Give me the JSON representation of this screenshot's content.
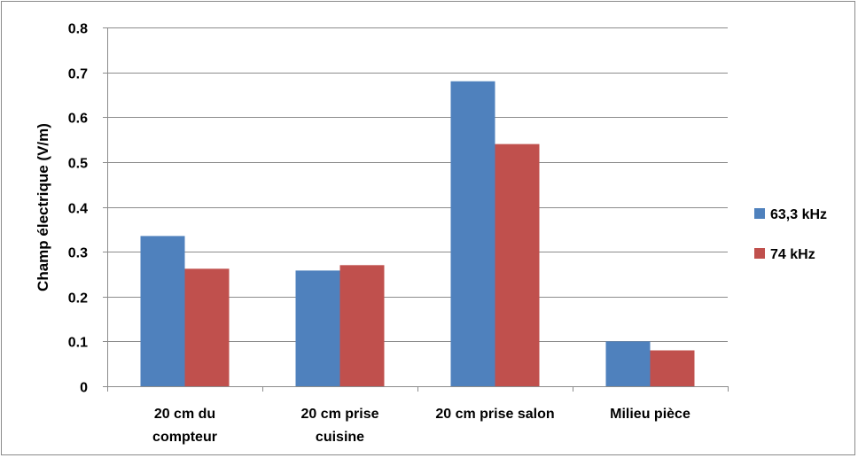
{
  "chart_data": {
    "type": "bar",
    "title": "",
    "xlabel": "",
    "ylabel": "Champ électrique (V/m)",
    "ylim": [
      0,
      0.8
    ],
    "yticks": [
      "0",
      "0.1",
      "0.2",
      "0.3",
      "0.4",
      "0.5",
      "0.6",
      "0.7",
      "0.8"
    ],
    "grid": true,
    "legend_position": "right",
    "categories": [
      [
        "20 cm du",
        "compteur"
      ],
      [
        "20 cm prise",
        "cuisine"
      ],
      [
        "20 cm prise salon"
      ],
      [
        "Milieu pièce"
      ]
    ],
    "series": [
      {
        "name": "63,3 kHz",
        "color": "#4F81BD",
        "values": [
          0.335,
          0.258,
          0.68,
          0.1
        ]
      },
      {
        "name": "74 kHz",
        "color": "#C0504D",
        "values": [
          0.262,
          0.27,
          0.54,
          0.08
        ]
      }
    ]
  }
}
